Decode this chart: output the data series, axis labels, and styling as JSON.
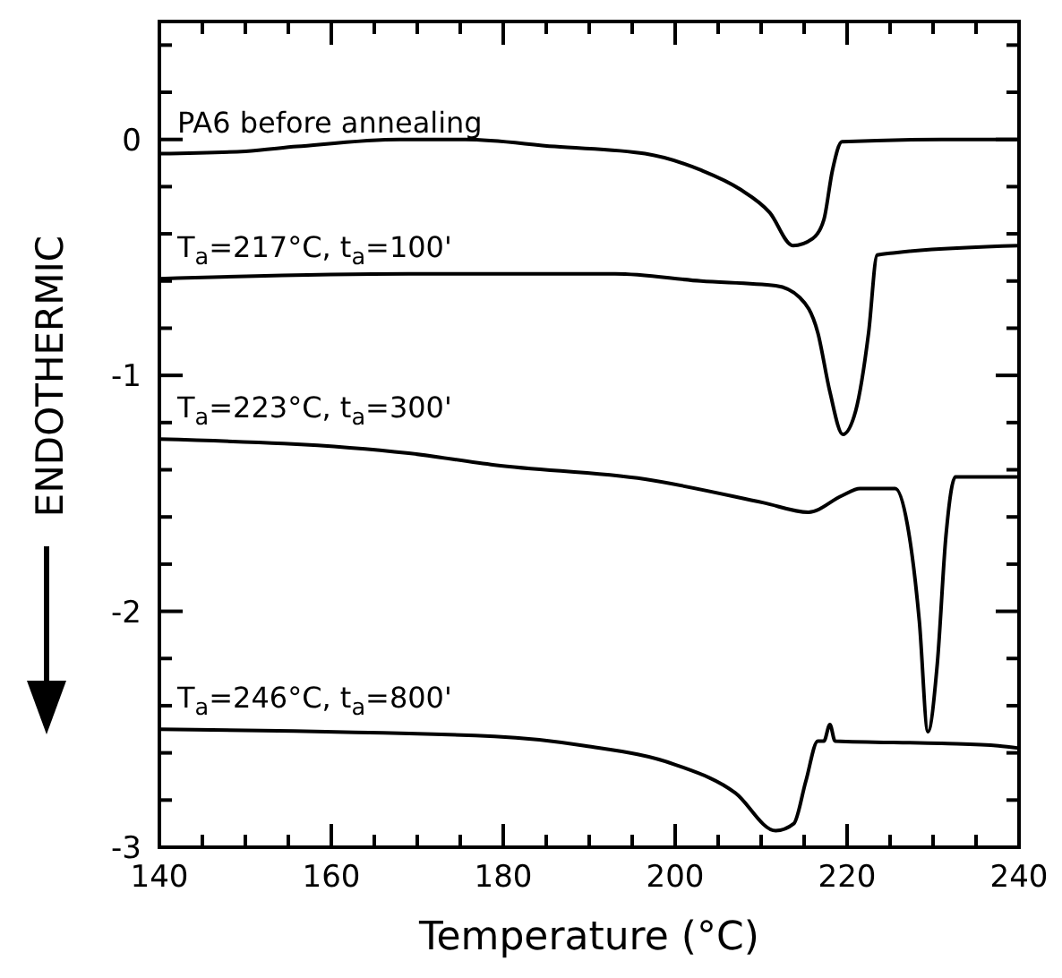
{
  "chart_data": {
    "type": "line",
    "xlabel": "Temperature (°C)",
    "ylabel": "ENDOTHERMIC",
    "xlim": [
      140,
      240
    ],
    "ylim": [
      -3,
      0.5
    ],
    "xticks": [
      140,
      {
        "value": 145,
        "label": null
      },
      {
        "value": 150,
        "label": null
      },
      {
        "value": 155,
        "label": null
      },
      160,
      {
        "value": 165,
        "label": null
      },
      {
        "value": 170,
        "label": null
      },
      {
        "value": 175,
        "label": null
      },
      180,
      {
        "value": 185,
        "label": null
      },
      {
        "value": 190,
        "label": null
      },
      {
        "value": 195,
        "label": null
      },
      200,
      {
        "value": 205,
        "label": null
      },
      {
        "value": 210,
        "label": null
      },
      {
        "value": 215,
        "label": null
      },
      220,
      {
        "value": 225,
        "label": null
      },
      {
        "value": 230,
        "label": null
      },
      {
        "value": 235,
        "label": null
      },
      240
    ],
    "yticks": [
      -3,
      {
        "value": -2.8,
        "label": null
      },
      {
        "value": -2.6,
        "label": null
      },
      {
        "value": -2.4,
        "label": null
      },
      {
        "value": -2.2,
        "label": null
      },
      -2,
      {
        "value": -1.8,
        "label": null
      },
      {
        "value": -1.6,
        "label": null
      },
      {
        "value": -1.4,
        "label": null
      },
      {
        "value": -1.2,
        "label": null
      },
      -1,
      {
        "value": -0.8,
        "label": null
      },
      {
        "value": -0.6,
        "label": null
      },
      {
        "value": -0.4,
        "label": null
      },
      {
        "value": -0.2,
        "label": null
      },
      0,
      {
        "value": 0.2,
        "label": null
      },
      {
        "value": 0.4,
        "label": null
      }
    ],
    "grid": false,
    "marker": "none",
    "line_style": "solid",
    "legend": false,
    "series": [
      {
        "name": "PA6 before annealing",
        "color": "#000000",
        "x": [
          140,
          150,
          156,
          168,
          175.6,
          186,
          196.5,
          203,
          207.5,
          211,
          213.7,
          216,
          217.3,
          218.3,
          219.4,
          231,
          240
        ],
        "values": [
          -0.06,
          -0.05,
          -0.03,
          0,
          0,
          -0.03,
          -0.06,
          -0.13,
          -0.21,
          -0.31,
          -0.45,
          -0.42,
          -0.34,
          -0.13,
          -0.01,
          0,
          0
        ]
      },
      {
        "name": "T$_{a}$=217°C, t$_{a}$=100'",
        "color": "#000000",
        "x": [
          140,
          169,
          193,
          203,
          211.7,
          214.5,
          216.6,
          218,
          219.5,
          221,
          222.5,
          223.5,
          225.6,
          240
        ],
        "values": [
          -0.59,
          -0.57,
          -0.57,
          -0.6,
          -0.62,
          -0.67,
          -0.82,
          -1.07,
          -1.25,
          -1.15,
          -0.82,
          -0.49,
          -0.48,
          -0.45
        ]
      },
      {
        "name": "T$_{a}$=223°C, t$_{a}$=300'",
        "color": "#000000",
        "x": [
          140,
          169,
          179,
          196.5,
          210.3,
          215.5,
          219.4,
          221.5,
          225.6,
          227,
          228.4,
          229.4,
          230.5,
          231.5,
          232.6,
          240
        ],
        "values": [
          -1.27,
          -1.33,
          -1.38,
          -1.44,
          -1.54,
          -1.58,
          -1.51,
          -1.48,
          -1.48,
          -1.63,
          -2.04,
          -2.51,
          -2.22,
          -1.68,
          -1.43,
          -1.43
        ]
      },
      {
        "name": "T$_{a}$=246°C, t$_{a}$=800'",
        "color": "#000000",
        "x": [
          140,
          179,
          189.5,
          200,
          207,
          211.7,
          213.8,
          215.2,
          216.6,
          217.3,
          218,
          218.6,
          231,
          237.6,
          240
        ],
        "values": [
          -2.5,
          -2.53,
          -2.57,
          -2.65,
          -2.77,
          -2.93,
          -2.9,
          -2.72,
          -2.55,
          -2.55,
          -2.48,
          -2.55,
          -2.56,
          -2.57,
          -2.58
        ]
      }
    ]
  }
}
